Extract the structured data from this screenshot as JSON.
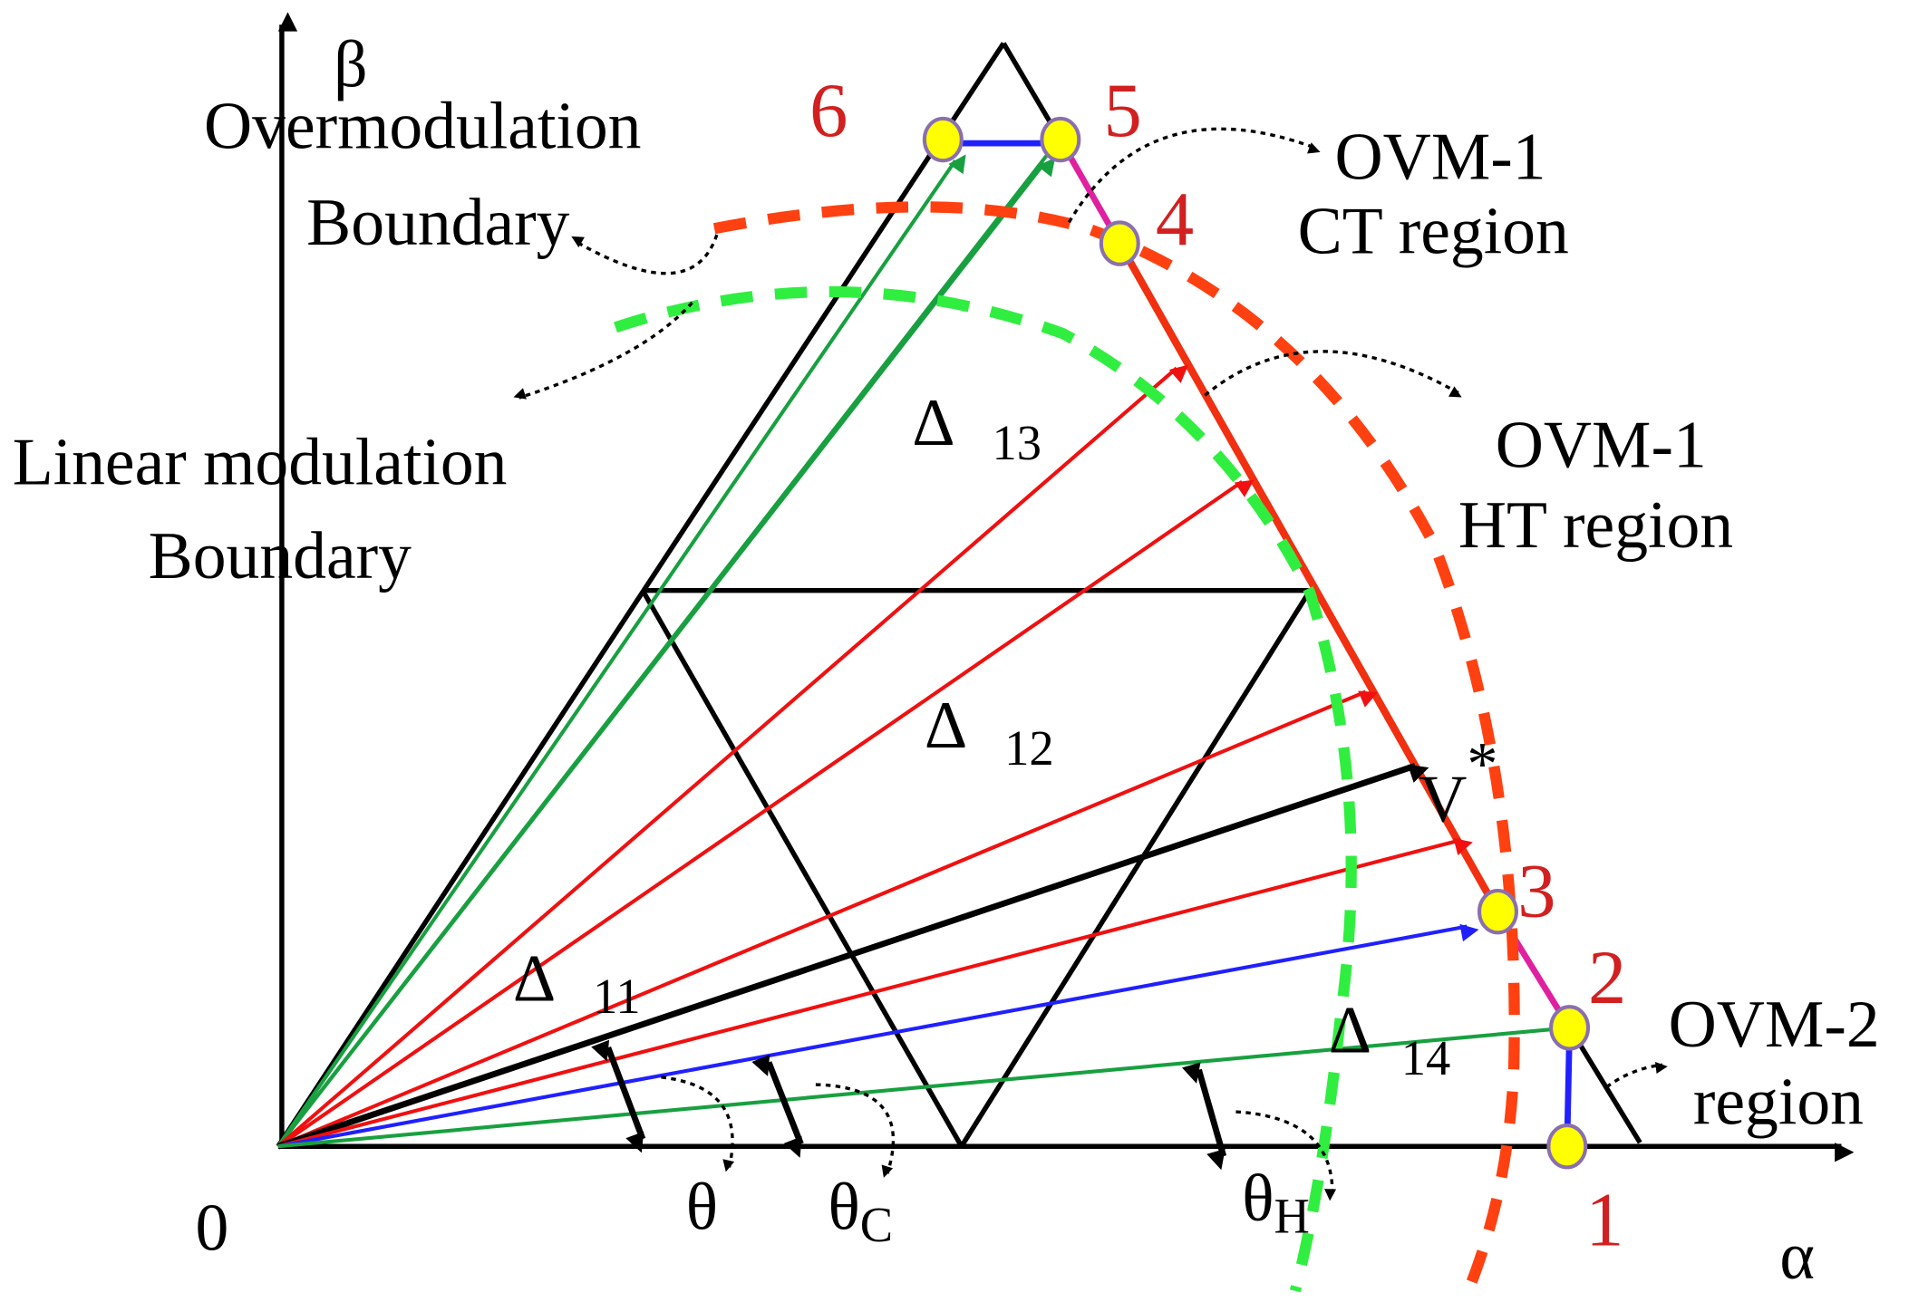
{
  "axes": {
    "beta": "β",
    "alpha": "α",
    "origin": "0"
  },
  "boundaries": {
    "overmodulation": [
      "Overmodulation",
      "Boundary"
    ],
    "linear": [
      "Linear modulation",
      "Boundary"
    ]
  },
  "regions": [
    {
      "lines": [
        "OVM-1",
        "CT region"
      ]
    },
    {
      "lines": [
        "OVM-1",
        "HT region"
      ]
    },
    {
      "lines": [
        "OVM-2",
        "region"
      ]
    }
  ],
  "triangles": [
    {
      "symbol": "Δ",
      "subscript": "13"
    },
    {
      "symbol": "Δ",
      "subscript": "12"
    },
    {
      "symbol": "Δ",
      "subscript": "11"
    },
    {
      "symbol": "Δ",
      "subscript": "14"
    }
  ],
  "vector": {
    "symbol": "V",
    "superscript": "*"
  },
  "angles": [
    {
      "symbol": "θ"
    },
    {
      "symbol": "θ",
      "subscript": "C"
    },
    {
      "symbol": "θ",
      "subscript": "H"
    }
  ],
  "points": [
    "1",
    "2",
    "3",
    "4",
    "5",
    "6"
  ]
}
